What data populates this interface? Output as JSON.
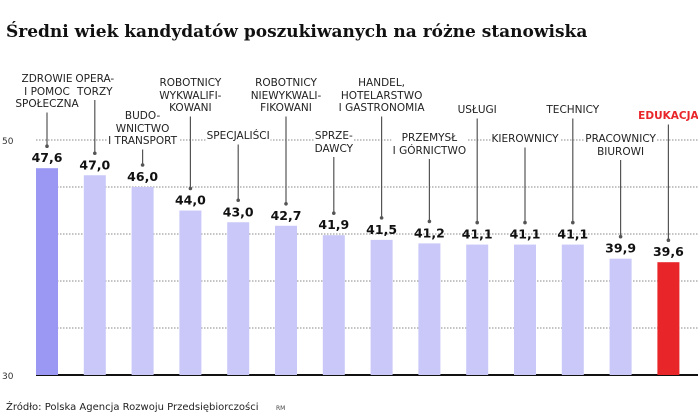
{
  "title": "Średni wiek kandydatów poszukiwanych na różne stanowiska",
  "source": "Źródło: Polska Agencja Rozwoju Przedsiębiorczości",
  "credit": "RM",
  "chart_data": {
    "type": "bar",
    "title": "Średni wiek kandydatów poszukiwanych na różne stanowiska",
    "categories": [
      "ZDROWIE\nI POMOC\nSPOŁECZNA",
      "OPERA-\nTORZY",
      "BUDO-\nWNICTWO\nI TRANSPORT",
      "ROBOTNICY\nWYKWALIFI-\nKOWANI",
      "SPECJALIŚCI",
      "ROBOTNICY\nNIEWYKWALI-\nFIKOWANI",
      "SPRZE-\nDAWCY",
      "HANDEL,\nHOTELARSTWO\nI GASTRONOMIA",
      "PRZEMYSŁ\nI GÓRNICTWO",
      "USŁUGI",
      "KIEROWNICY",
      "TECHNICY",
      "PRACOWNICY\nBIUROWI",
      "EDUKACJA"
    ],
    "values": [
      47.6,
      47.0,
      46.0,
      44.0,
      43.0,
      42.7,
      41.9,
      41.5,
      41.2,
      41.1,
      41.1,
      41.1,
      39.9,
      39.6
    ],
    "value_labels": [
      "47,6",
      "47,0",
      "46,0",
      "44,0",
      "43,0",
      "42,7",
      "41,9",
      "41,5",
      "41,2",
      "41,1",
      "41,1",
      "41,1",
      "39,9",
      "39,6"
    ],
    "yticks": [
      "30",
      "50"
    ],
    "ylim": [
      30,
      50
    ],
    "grid": true,
    "colors": {
      "first": "#9b98f4",
      "default": "#c9c8f8",
      "highlight": "#e8262a"
    },
    "highlight_index": 13
  }
}
